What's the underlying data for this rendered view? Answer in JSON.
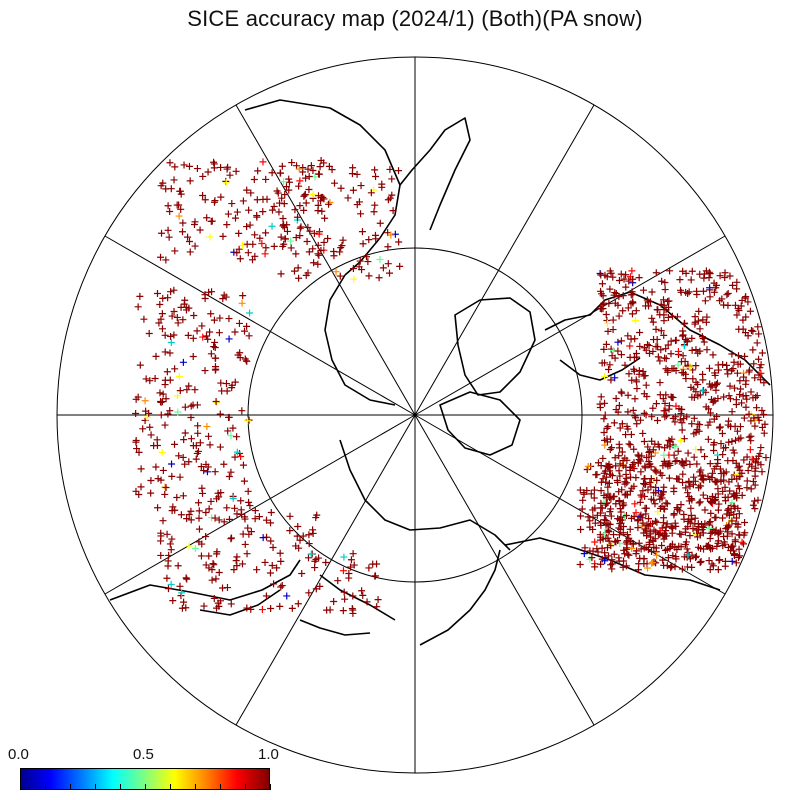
{
  "title": "SICE accuracy map (2024/1) (Both)(PA snow)",
  "colorbar": {
    "min_label": "0.0",
    "mid_label": "0.5",
    "max_label": "1.0",
    "range": [
      0.0,
      1.0
    ]
  },
  "colors": {
    "dominant_marker": "#8b0000",
    "coastline": "#000000",
    "grid": "#000000"
  },
  "projection": "north-polar-stereographic",
  "marker_symbol": "+"
}
